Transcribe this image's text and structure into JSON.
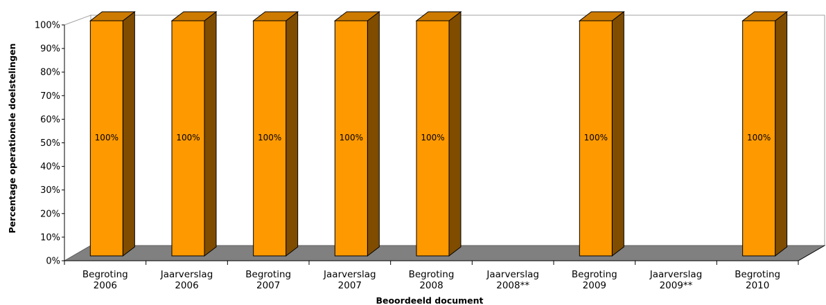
{
  "chart_data": {
    "type": "bar",
    "title": "",
    "xlabel": "Beoordeeld document",
    "ylabel": "Percentage operationele doelstelingen",
    "ylim": [
      0,
      100
    ],
    "yticks": [
      "0%",
      "10%",
      "20%",
      "30%",
      "40%",
      "50%",
      "60%",
      "70%",
      "80%",
      "90%",
      "100%"
    ],
    "categories": [
      [
        "Begroting",
        "2006"
      ],
      [
        "Jaarverslag",
        "2006"
      ],
      [
        "Begroting",
        "2007"
      ],
      [
        "Jaarverslag",
        "2007"
      ],
      [
        "Begroting",
        "2008"
      ],
      [
        "Jaarverslag",
        "2008**"
      ],
      [
        "Begroting",
        "2009"
      ],
      [
        "Jaarverslag",
        "2009**"
      ],
      [
        "Begroting",
        "2010"
      ]
    ],
    "values": [
      100,
      100,
      100,
      100,
      100,
      null,
      100,
      null,
      100
    ],
    "data_labels": [
      "100%",
      "100%",
      "100%",
      "100%",
      "100%",
      "",
      "100%",
      "",
      "100%"
    ],
    "grid": false,
    "colors": {
      "bar_front": "#ff9900",
      "bar_side": "#7f4c00",
      "bar_top": "#cc7a00",
      "floor": "#808080",
      "outline": "#000000"
    }
  }
}
